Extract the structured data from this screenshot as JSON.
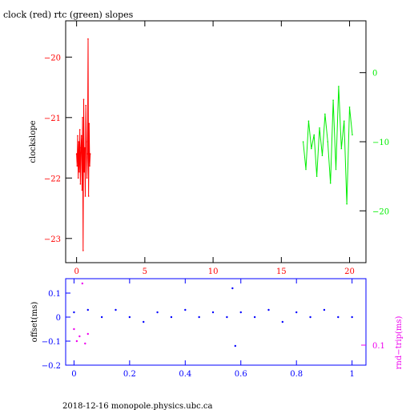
{
  "page": {
    "title": "clock (red) rtc (green) slopes",
    "footer": "2018-12-16  monopole.physics.ubc.ca"
  },
  "colors": {
    "clock": "#ff0000",
    "rtc": "#00ee00",
    "offset": "#0000ff",
    "rndtrip": "#ee00ee",
    "axis": "#000000"
  },
  "chart_data": [
    {
      "type": "line",
      "title": "clock (red) rtc (green) slopes",
      "ylabel": "clockslope",
      "xlabel": "",
      "xlim": [
        -0.8,
        21.2
      ],
      "ylim": [
        -23.4,
        -19.4
      ],
      "y2lim": [
        -27.5,
        7.5
      ],
      "xticks": [
        0,
        5,
        10,
        15,
        20
      ],
      "xtick_labels": [
        "0",
        "5",
        "10",
        "15",
        "20"
      ],
      "yticks": [
        -20,
        -21,
        -22,
        -23
      ],
      "ytick_labels": [
        "−20",
        "−21",
        "−22",
        "−23"
      ],
      "y2ticks": [
        0,
        -10,
        -20
      ],
      "y2tick_labels": [
        "0",
        "−10",
        "−20"
      ],
      "series": [
        {
          "name": "clock",
          "axis": "left",
          "x": [
            0.0,
            0.04,
            0.08,
            0.12,
            0.16,
            0.2,
            0.24,
            0.28,
            0.32,
            0.36,
            0.4,
            0.44,
            0.48,
            0.52,
            0.56,
            0.6,
            0.64,
            0.68,
            0.72,
            0.76,
            0.8,
            0.84,
            0.88,
            0.92,
            0.96,
            1.0
          ],
          "y": [
            -21.6,
            -21.8,
            -21.3,
            -22.0,
            -21.4,
            -21.9,
            -21.2,
            -22.1,
            -21.5,
            -21.3,
            -22.2,
            -21.0,
            -23.2,
            -20.7,
            -21.9,
            -21.5,
            -22.3,
            -20.8,
            -21.4,
            -22.0,
            -21.6,
            -19.7,
            -22.3,
            -21.1,
            -21.8,
            -21.6
          ]
        },
        {
          "name": "rtc",
          "axis": "right",
          "x": [
            16.6,
            16.8,
            17.0,
            17.2,
            17.4,
            17.6,
            17.8,
            18.0,
            18.2,
            18.4,
            18.6,
            18.8,
            19.0,
            19.2,
            19.4,
            19.6,
            19.8,
            20.0,
            20.2
          ],
          "y": [
            -10.0,
            -14.0,
            -7.0,
            -11.0,
            -9.0,
            -15.0,
            -8.0,
            -12.0,
            -6.0,
            -10.0,
            -16.0,
            -4.0,
            -14.0,
            -2.0,
            -11.0,
            -7.0,
            -19.0,
            -5.0,
            -9.0
          ]
        }
      ]
    },
    {
      "type": "scatter",
      "ylabel": "offset(ms)",
      "y2label": "rnd−trip(ms)",
      "xlim": [
        -0.03,
        1.05
      ],
      "ylim": [
        -0.2,
        0.16
      ],
      "y2lim": [
        0.05,
        1.0
      ],
      "xticks": [
        0,
        0.2,
        0.4,
        0.6,
        0.8,
        1
      ],
      "xtick_labels": [
        "0",
        "0.2",
        "0.4",
        "0.6",
        "0.8",
        "1"
      ],
      "yticks": [
        0.1,
        0,
        -0.1,
        -0.2
      ],
      "ytick_labels": [
        "0.1",
        "0",
        "−0.1",
        "−0.2"
      ],
      "y2ticks": [
        0.1
      ],
      "y2tick_labels": [
        "0.1"
      ],
      "series": [
        {
          "name": "offset",
          "x": [
            0.0,
            0.05,
            0.1,
            0.15,
            0.2,
            0.25,
            0.3,
            0.35,
            0.4,
            0.45,
            0.5,
            0.55,
            0.57,
            0.58,
            0.6,
            0.65,
            0.7,
            0.75,
            0.8,
            0.85,
            0.9,
            0.95,
            1.0
          ],
          "y": [
            0.02,
            0.03,
            0.0,
            0.03,
            0.0,
            -0.02,
            0.02,
            0.0,
            0.03,
            0.0,
            0.02,
            0.0,
            0.12,
            -0.12,
            0.02,
            0.0,
            0.03,
            -0.02,
            0.02,
            0.0,
            0.03,
            0.0,
            0.0
          ]
        },
        {
          "name": "rnd-trip",
          "x": [
            0.0,
            0.01,
            0.02,
            0.03,
            0.04,
            0.05
          ],
          "y": [
            -0.05,
            -0.1,
            -0.08,
            0.14,
            -0.11,
            -0.07
          ]
        }
      ]
    }
  ]
}
